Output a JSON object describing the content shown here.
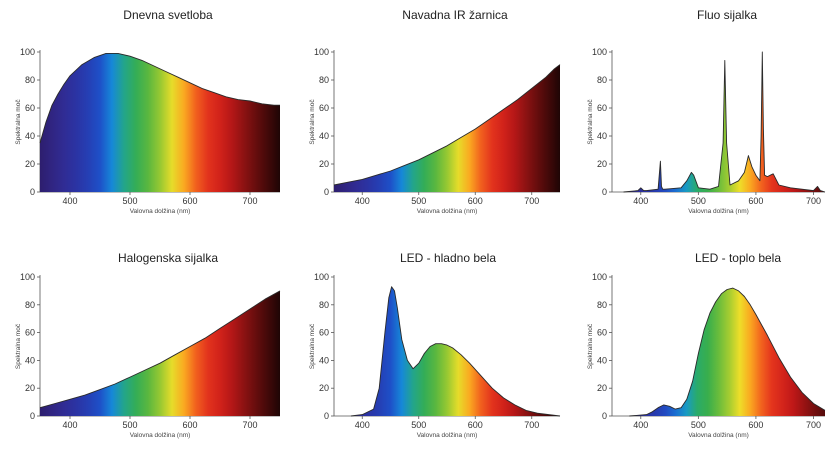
{
  "chart_data": [
    {
      "type": "area",
      "title": "Dnevna svetloba",
      "xlabel": "Valovna dolžina (nm)",
      "ylabel": "Spektralna moč",
      "xlim": [
        350,
        750
      ],
      "ylim": [
        0,
        100
      ],
      "x_ticks": [
        "400",
        "500",
        "600",
        "700"
      ],
      "y_ticks": [
        "0",
        "20",
        "40",
        "60",
        "80",
        "100"
      ],
      "x": [
        350,
        360,
        370,
        380,
        390,
        400,
        410,
        420,
        440,
        460,
        480,
        500,
        520,
        540,
        560,
        580,
        600,
        620,
        640,
        660,
        680,
        700,
        720,
        740,
        750
      ],
      "y": [
        35,
        50,
        62,
        70,
        77,
        83,
        87,
        91,
        96,
        99,
        99,
        97,
        94,
        90,
        86,
        82,
        78,
        74,
        71,
        68,
        66,
        65,
        63,
        62,
        62
      ]
    },
    {
      "type": "area",
      "title": "Navadna IR žarnica",
      "xlabel": "Valovna dolžina (nm)",
      "ylabel": "Spektralna moč",
      "xlim": [
        350,
        750
      ],
      "ylim": [
        0,
        100
      ],
      "x_ticks": [
        "400",
        "500",
        "600",
        "700"
      ],
      "y_ticks": [
        "0",
        "20",
        "40",
        "60",
        "80",
        "100"
      ],
      "x": [
        350,
        375,
        400,
        425,
        450,
        475,
        500,
        525,
        550,
        575,
        600,
        625,
        650,
        675,
        700,
        725,
        740,
        750
      ],
      "y": [
        5,
        7,
        9,
        12,
        15,
        19,
        23,
        28,
        33,
        39,
        45,
        52,
        59,
        66,
        74,
        82,
        88,
        91
      ]
    },
    {
      "type": "area",
      "title": "Fluo sijalka",
      "xlabel": "Valovna dolžina (nm)",
      "ylabel": "Spektralna moč",
      "xlim": [
        350,
        720
      ],
      "ylim": [
        0,
        100
      ],
      "x_ticks": [
        "400",
        "500",
        "600",
        "700"
      ],
      "y_ticks": [
        "0",
        "20",
        "40",
        "60",
        "80",
        "100"
      ],
      "x": [
        370,
        395,
        400,
        405,
        410,
        430,
        434,
        436,
        438,
        442,
        470,
        480,
        488,
        492,
        500,
        520,
        535,
        543,
        546,
        549,
        555,
        570,
        580,
        587,
        593,
        600,
        607,
        609,
        611,
        613,
        615,
        620,
        625,
        630,
        640,
        660,
        680,
        700,
        707,
        712,
        720
      ],
      "y": [
        0,
        1,
        3,
        1,
        1,
        2,
        22,
        4,
        2,
        2,
        3,
        8,
        14,
        12,
        3,
        2,
        4,
        35,
        94,
        35,
        5,
        8,
        14,
        26,
        18,
        12,
        8,
        40,
        100,
        45,
        12,
        11,
        12,
        13,
        5,
        3,
        2,
        1,
        4,
        1,
        0
      ]
    },
    {
      "type": "area",
      "title": "Halogenska sijalka",
      "xlabel": "Valovna dolžina (nm)",
      "ylabel": "Spektralna moč",
      "xlim": [
        350,
        750
      ],
      "ylim": [
        0,
        100
      ],
      "x_ticks": [
        "400",
        "500",
        "600",
        "700"
      ],
      "y_ticks": [
        "0",
        "20",
        "40",
        "60",
        "80",
        "100"
      ],
      "x": [
        350,
        375,
        400,
        425,
        450,
        475,
        500,
        525,
        550,
        575,
        600,
        625,
        650,
        675,
        700,
        725,
        750
      ],
      "y": [
        6,
        9,
        12,
        15,
        19,
        23,
        28,
        33,
        38,
        44,
        50,
        56,
        63,
        70,
        77,
        84,
        90
      ]
    },
    {
      "type": "area",
      "title": "LED - hladno bela",
      "xlabel": "Valovna dolžina (nm)",
      "ylabel": "Spektralna moč",
      "xlim": [
        350,
        750
      ],
      "ylim": [
        0,
        100
      ],
      "x_ticks": [
        "400",
        "500",
        "600",
        "700"
      ],
      "y_ticks": [
        "0",
        "20",
        "40",
        "60",
        "80",
        "100"
      ],
      "x": [
        380,
        400,
        420,
        430,
        440,
        447,
        452,
        457,
        462,
        470,
        480,
        490,
        500,
        510,
        520,
        530,
        540,
        550,
        560,
        575,
        590,
        610,
        630,
        650,
        670,
        690,
        710,
        730,
        750
      ],
      "y": [
        0,
        1,
        5,
        20,
        60,
        85,
        93,
        90,
        78,
        55,
        40,
        34,
        38,
        45,
        50,
        52,
        52,
        51,
        49,
        44,
        38,
        29,
        20,
        13,
        8,
        4,
        2,
        1,
        0
      ]
    },
    {
      "type": "area",
      "title": "LED - toplo bela",
      "xlabel": "Valovna dolžina (nm)",
      "ylabel": "Spektralna moč",
      "xlim": [
        350,
        720
      ],
      "ylim": [
        0,
        100
      ],
      "x_ticks": [
        "400",
        "500",
        "600",
        "700"
      ],
      "y_ticks": [
        "0",
        "20",
        "40",
        "60",
        "80",
        "100"
      ],
      "x": [
        380,
        410,
        420,
        430,
        440,
        450,
        460,
        470,
        480,
        490,
        500,
        510,
        520,
        530,
        540,
        550,
        560,
        570,
        580,
        590,
        600,
        620,
        640,
        660,
        680,
        700,
        720
      ],
      "y": [
        0,
        1,
        3,
        6,
        8,
        7,
        5,
        6,
        12,
        25,
        45,
        62,
        74,
        82,
        88,
        91,
        92,
        90,
        86,
        80,
        73,
        58,
        42,
        28,
        17,
        9,
        4
      ]
    }
  ]
}
